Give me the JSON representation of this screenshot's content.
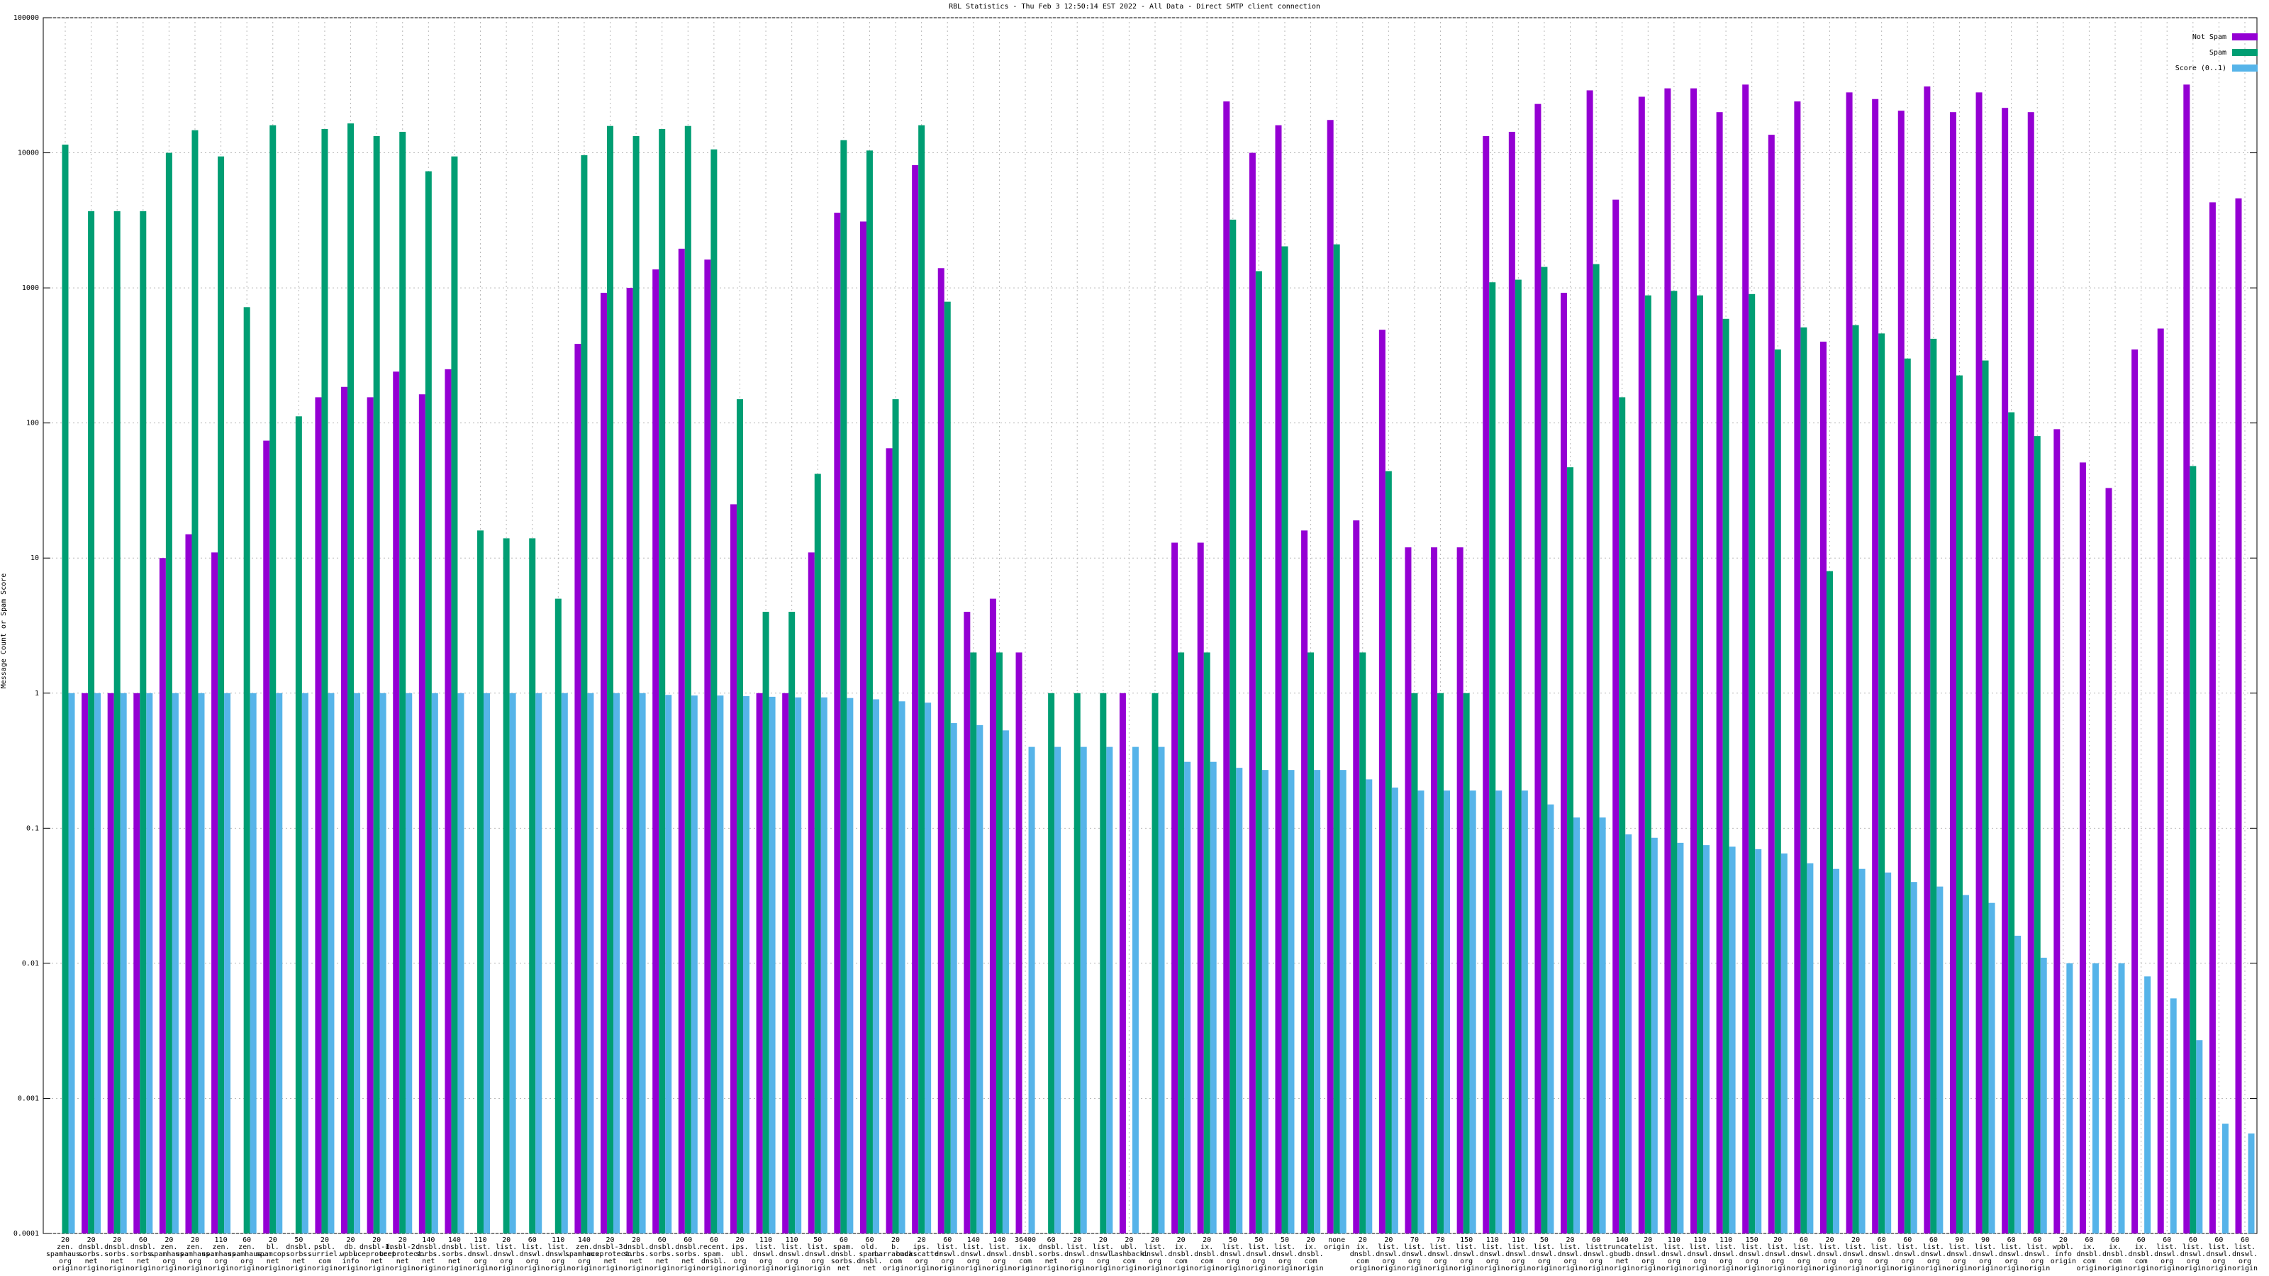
{
  "chart_data": {
    "type": "bar",
    "title": "RBL Statistics - Thu Feb  3 12:50:14 EST 2022 - All Data - Direct SMTP client connection",
    "y_label": "Message Count or Spam Score",
    "log_y": true,
    "grid": true,
    "legend": "top-right",
    "ylim": [
      0.0001,
      100000
    ],
    "yticks": [
      0.0001,
      0.001,
      0.01,
      0.1,
      1,
      10,
      100,
      1000,
      10000,
      100000
    ],
    "categories": [
      [
        "20",
        "zen.",
        "spamhaus.",
        "org",
        "origin"
      ],
      [
        "20",
        "dnsbl.",
        "sorbs.",
        "net",
        "origin"
      ],
      [
        "20",
        "dnsbl.",
        "sorbs.",
        "net",
        "origin"
      ],
      [
        "60",
        "dnsbl.",
        "sorbs.",
        "net",
        "origin"
      ],
      [
        "20",
        "zen.",
        "spamhaus.",
        "org",
        "origin"
      ],
      [
        "20",
        "zen.",
        "spamhaus.",
        "org",
        "origin"
      ],
      [
        "110",
        "zen.",
        "spamhaus.",
        "org",
        "origin"
      ],
      [
        "60",
        "zen.",
        "spamhaus.",
        "org",
        "origin"
      ],
      [
        "20",
        "bl.",
        "spamcop.",
        "net",
        "origin"
      ],
      [
        "50",
        "dnsbl.",
        "sorbs.",
        "net",
        "origin"
      ],
      [
        "20",
        "psbl.",
        "surriel.",
        "com",
        "origin"
      ],
      [
        "20",
        "db.",
        "wpbl.",
        "info",
        "origin"
      ],
      [
        "20",
        "dnsbl-1.",
        "uceprotect.",
        "net",
        "origin"
      ],
      [
        "20",
        "dnsbl-2.",
        "uceprotect.",
        "net",
        "origin"
      ],
      [
        "140",
        "dnsbl.",
        "sorbs.",
        "net",
        "origin"
      ],
      [
        "140",
        "dnsbl.",
        "sorbs.",
        "net",
        "origin"
      ],
      [
        "110",
        "list.",
        "dnswl.",
        "org",
        "origin"
      ],
      [
        "20",
        "list.",
        "dnswl.",
        "org",
        "origin"
      ],
      [
        "60",
        "list.",
        "dnswl.",
        "org",
        "origin"
      ],
      [
        "110",
        "list.",
        "dnswl.",
        "org",
        "origin"
      ],
      [
        "140",
        "zen.",
        "spamhaus.",
        "org",
        "origin"
      ],
      [
        "20",
        "dnsbl-3.",
        "uceprotect.",
        "net",
        "origin"
      ],
      [
        "20",
        "dnsbl.",
        "sorbs.",
        "net",
        "origin"
      ],
      [
        "60",
        "dnsbl.",
        "sorbs.",
        "net",
        "origin"
      ],
      [
        "60",
        "dnsbl.",
        "sorbs.",
        "net",
        "origin"
      ],
      [
        "60",
        "recent.",
        "spam.",
        "dnsbl.",
        "origin"
      ],
      [
        "20",
        "ips.",
        "ubl.",
        "org",
        "origin"
      ],
      [
        "110",
        "list.",
        "dnswl.",
        "org",
        "origin"
      ],
      [
        "110",
        "list.",
        "dnswl.",
        "org",
        "origin"
      ],
      [
        "50",
        "list.",
        "dnswl.",
        "org",
        "origin"
      ],
      [
        "60",
        "spam.",
        "dnsbl.",
        "sorbs.",
        "net"
      ],
      [
        "60",
        "old.",
        "spam.",
        "dnsbl.",
        "net"
      ],
      [
        "20",
        "b.",
        "barracuda.",
        "com",
        "origin"
      ],
      [
        "20",
        "ips.",
        "backscatter.",
        "org",
        "origin"
      ],
      [
        "60",
        "list.",
        "dnswl.",
        "org",
        "origin"
      ],
      [
        "140",
        "list.",
        "dnswl.",
        "org",
        "origin"
      ],
      [
        "140",
        "list.",
        "dnswl.",
        "org",
        "origin"
      ],
      [
        "36400",
        "ix.",
        "dnsbl.",
        "com",
        "origin"
      ],
      [
        "60",
        "dnsbl.",
        "sorbs.",
        "net",
        "origin"
      ],
      [
        "20",
        "list.",
        "dnswl.",
        "org",
        "origin"
      ],
      [
        "20",
        "list.",
        "dnswl.",
        "org",
        "origin"
      ],
      [
        "20",
        "ubl.",
        "lashback.",
        "com",
        "origin"
      ],
      [
        "20",
        "list.",
        "dnswl.",
        "org",
        "origin"
      ],
      [
        "20",
        "ix.",
        "dnsbl.",
        "com",
        "origin"
      ],
      [
        "20",
        "ix.",
        "dnsbl.",
        "com",
        "origin"
      ],
      [
        "50",
        "list.",
        "dnswl.",
        "org",
        "origin"
      ],
      [
        "50",
        "list.",
        "dnswl.",
        "org",
        "origin"
      ],
      [
        "50",
        "list.",
        "dnswl.",
        "org",
        "origin"
      ],
      [
        "20",
        "ix.",
        "dnsbl.",
        "com",
        "origin"
      ],
      [
        "none",
        "origin"
      ],
      [
        "20",
        "ix.",
        "dnsbl.",
        "com",
        "origin"
      ],
      [
        "20",
        "list.",
        "dnswl.",
        "org",
        "origin"
      ],
      [
        "70",
        "list.",
        "dnswl.",
        "org",
        "origin"
      ],
      [
        "70",
        "list.",
        "dnswl.",
        "org",
        "origin"
      ],
      [
        "150",
        "list.",
        "dnswl.",
        "org",
        "origin"
      ],
      [
        "110",
        "list.",
        "dnswl.",
        "org",
        "origin"
      ],
      [
        "110",
        "list.",
        "dnswl.",
        "org",
        "origin"
      ],
      [
        "50",
        "list.",
        "dnswl.",
        "org",
        "origin"
      ],
      [
        "20",
        "list.",
        "dnswl.",
        "org",
        "origin"
      ],
      [
        "60",
        "list.",
        "dnswl.",
        "org",
        "origin"
      ],
      [
        "140",
        "truncate.",
        "gbudb.",
        "net",
        "origin"
      ],
      [
        "20",
        "list.",
        "dnswl.",
        "org",
        "origin"
      ],
      [
        "110",
        "list.",
        "dnswl.",
        "org",
        "origin"
      ],
      [
        "110",
        "list.",
        "dnswl.",
        "org",
        "origin"
      ],
      [
        "110",
        "list.",
        "dnswl.",
        "org",
        "origin"
      ],
      [
        "150",
        "list.",
        "dnswl.",
        "org",
        "origin"
      ],
      [
        "20",
        "list.",
        "dnswl.",
        "org",
        "origin"
      ],
      [
        "60",
        "list.",
        "dnswl.",
        "org",
        "origin"
      ],
      [
        "20",
        "list.",
        "dnswl.",
        "org",
        "origin"
      ],
      [
        "20",
        "list.",
        "dnswl.",
        "org",
        "origin"
      ],
      [
        "60",
        "list.",
        "dnswl.",
        "org",
        "origin"
      ],
      [
        "60",
        "list.",
        "dnswl.",
        "org",
        "origin"
      ],
      [
        "60",
        "list.",
        "dnswl.",
        "org",
        "origin"
      ],
      [
        "90",
        "list.",
        "dnswl.",
        "org",
        "origin"
      ],
      [
        "90",
        "list.",
        "dnswl.",
        "org",
        "origin"
      ],
      [
        "60",
        "list.",
        "dnswl.",
        "org",
        "origin"
      ],
      [
        "60",
        "list.",
        "dnswl.",
        "org",
        "origin"
      ],
      [
        "20",
        "wpbl.",
        "info",
        "origin"
      ],
      [
        "60",
        "ix.",
        "dnsbl.",
        "com",
        "origin"
      ],
      [
        "60",
        "ix.",
        "dnsbl.",
        "com",
        "origin"
      ],
      [
        "60",
        "ix.",
        "dnsbl.",
        "com",
        "origin"
      ],
      [
        "60",
        "list.",
        "dnswl.",
        "org",
        "origin"
      ],
      [
        "60",
        "list.",
        "dnswl.",
        "org",
        "origin"
      ],
      [
        "60",
        "list.",
        "dnswl.",
        "org",
        "origin"
      ],
      [
        "60",
        "list.",
        "dnswl.",
        "org",
        "origin"
      ]
    ],
    "series": [
      {
        "name": "Not Spam",
        "color": "#9400d3",
        "values": [
          null,
          1,
          1,
          1,
          10,
          15,
          11,
          null,
          74,
          null,
          155,
          185,
          155,
          240,
          163,
          250,
          null,
          null,
          null,
          null,
          385,
          920,
          1000,
          1370,
          1950,
          1620,
          25,
          1,
          1,
          11,
          3600,
          3100,
          65,
          8100,
          1400,
          4,
          5,
          2,
          null,
          null,
          null,
          1,
          null,
          13,
          13,
          24000,
          10000,
          16000,
          16,
          17500,
          19,
          490,
          12,
          12,
          12,
          13300,
          14300,
          23000,
          920,
          29000,
          4500,
          26000,
          30000,
          30000,
          20000,
          32000,
          13600,
          24000,
          400,
          28000,
          25000,
          20500,
          31000,
          20000,
          28000,
          21500,
          20000,
          90,
          51,
          33,
          350,
          500,
          32000,
          4300,
          4600
        ]
      },
      {
        "name": "Spam",
        "color": "#009e73",
        "values": [
          11500,
          3700,
          3700,
          3700,
          10000,
          14700,
          9400,
          720,
          16000,
          112,
          15000,
          16500,
          13300,
          14300,
          7300,
          9400,
          16,
          14,
          14,
          5,
          9600,
          15800,
          13300,
          15000,
          15800,
          10600,
          150,
          4,
          4,
          42,
          12400,
          10400,
          150,
          16000,
          790,
          2,
          2,
          null,
          1,
          1,
          1,
          null,
          1,
          2,
          2,
          3200,
          1330,
          2030,
          2,
          2100,
          2,
          44,
          1,
          1,
          1,
          1100,
          1150,
          1430,
          47,
          1500,
          155,
          880,
          950,
          880,
          590,
          900,
          350,
          510,
          8,
          530,
          460,
          300,
          420,
          225,
          290,
          120,
          80,
          null,
          null,
          null,
          null,
          null,
          48,
          null,
          null
        ]
      },
      {
        "name": "Score (0..1)",
        "color": "#56b4e9",
        "values": [
          1,
          1,
          1,
          1,
          1,
          1,
          1,
          1,
          1,
          1,
          1,
          1,
          1,
          1,
          1,
          1,
          1,
          1,
          1,
          1,
          1,
          1,
          1,
          0.97,
          0.96,
          0.96,
          0.95,
          0.94,
          0.93,
          0.93,
          0.92,
          0.9,
          0.87,
          0.85,
          0.6,
          0.58,
          0.53,
          0.4,
          0.4,
          0.4,
          0.4,
          0.4,
          0.4,
          0.31,
          0.31,
          0.28,
          0.27,
          0.27,
          0.27,
          0.27,
          0.23,
          0.2,
          0.19,
          0.19,
          0.19,
          0.19,
          0.19,
          0.15,
          0.12,
          0.12,
          0.09,
          0.085,
          0.078,
          0.075,
          0.073,
          0.07,
          0.065,
          0.055,
          0.05,
          0.05,
          0.047,
          0.04,
          0.037,
          0.032,
          0.028,
          0.016,
          0.011,
          0.01,
          0.01,
          0.01,
          0.008,
          0.0055,
          0.0027,
          0.00065,
          0.00055
        ]
      }
    ]
  }
}
